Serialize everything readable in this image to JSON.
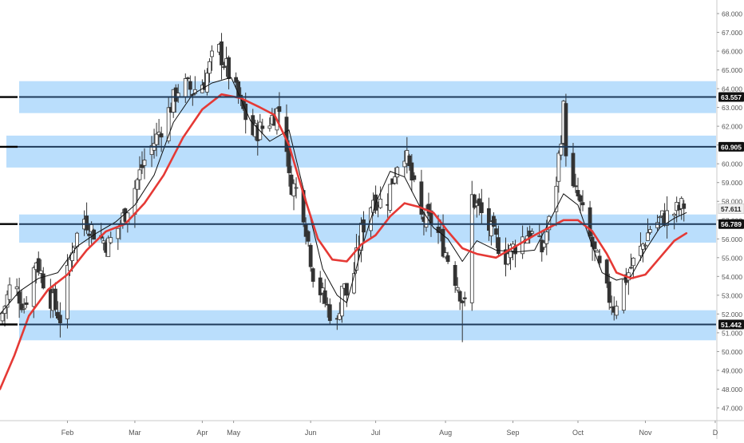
{
  "chart_data": {
    "type": "candlestick",
    "instrument_colors": {
      "zone_fill": "#b3dafc",
      "level_line": "#1f3b5a",
      "slow_ma": "#e53935",
      "fast_ma": "#111111",
      "candle_up_body": "#ffffff",
      "candle_down_body": "#333333",
      "wick": "#333333",
      "price_label_bg": "#111111",
      "current_price_label_bg": "#f0f0f0"
    },
    "y_axis": {
      "range": [
        46.3,
        68.4
      ],
      "ticks": [
        "47.000",
        "48.000",
        "49.000",
        "50.000",
        "51.000",
        "52.000",
        "53.000",
        "54.000",
        "55.000",
        "56.000",
        "57.000",
        "58.000",
        "59.000",
        "60.000",
        "61.000",
        "62.000",
        "63.000",
        "64.000",
        "65.000",
        "66.000",
        "67.000",
        "68.000"
      ],
      "tick_values": [
        47,
        48,
        49,
        50,
        51,
        52,
        53,
        54,
        55,
        56,
        57,
        58,
        59,
        60,
        61,
        62,
        63,
        64,
        65,
        66,
        67,
        68
      ]
    },
    "x_axis": {
      "labels": [
        "Feb",
        "Mar",
        "Apr",
        "May",
        "Jun",
        "Jul",
        "Aug",
        "Sep",
        "Oct",
        "Nov",
        "D"
      ],
      "label_days": [
        28,
        56,
        84,
        97,
        129,
        156,
        185,
        213,
        240,
        268,
        297
      ],
      "day_range": [
        0,
        300
      ]
    },
    "support_resistance_zones": [
      {
        "low": 62.7,
        "high": 64.4,
        "level": 63.557,
        "label": "63.557"
      },
      {
        "low": 59.8,
        "high": 61.5,
        "level": 60.905,
        "label": "60.905"
      },
      {
        "low": 55.8,
        "high": 57.3,
        "level": 56.789,
        "label": "56.789"
      },
      {
        "low": 50.6,
        "high": 52.2,
        "level": 51.442,
        "label": "51.442"
      }
    ],
    "current_price": {
      "value": 57.611,
      "label": "57.611"
    },
    "candles_close_path": [
      [
        0,
        51.6
      ],
      [
        5,
        53.8
      ],
      [
        10,
        52.4
      ],
      [
        15,
        54.9
      ],
      [
        20,
        53.1
      ],
      [
        25,
        51.8
      ],
      [
        30,
        55.6
      ],
      [
        35,
        57.1
      ],
      [
        40,
        56.2
      ],
      [
        45,
        55.7
      ],
      [
        50,
        56.8
      ],
      [
        55,
        58.4
      ],
      [
        60,
        60.2
      ],
      [
        65,
        61.4
      ],
      [
        70,
        62.8
      ],
      [
        75,
        64.3
      ],
      [
        80,
        63.9
      ],
      [
        85,
        64.4
      ],
      [
        90,
        66.3
      ],
      [
        95,
        64.8
      ],
      [
        100,
        63.1
      ],
      [
        105,
        61.6
      ],
      [
        110,
        62.0
      ],
      [
        115,
        62.8
      ],
      [
        118,
        63.0
      ],
      [
        120,
        59.1
      ],
      [
        125,
        58.3
      ],
      [
        130,
        54.2
      ],
      [
        135,
        52.6
      ],
      [
        140,
        51.4
      ],
      [
        142,
        53.6
      ],
      [
        145,
        52.8
      ],
      [
        150,
        56.4
      ],
      [
        155,
        58.2
      ],
      [
        160,
        57.8
      ],
      [
        165,
        60.1
      ],
      [
        168,
        60.7
      ],
      [
        172,
        58.6
      ],
      [
        175,
        57.1
      ],
      [
        180,
        56.9
      ],
      [
        185,
        55.3
      ],
      [
        190,
        53.6
      ],
      [
        193,
        52.4
      ],
      [
        196,
        58.2
      ],
      [
        200,
        57.3
      ],
      [
        205,
        56.1
      ],
      [
        210,
        55.1
      ],
      [
        215,
        55.8
      ],
      [
        220,
        56.4
      ],
      [
        225,
        55.4
      ],
      [
        230,
        57.8
      ],
      [
        234,
        62.9
      ],
      [
        236,
        58.8
      ],
      [
        240,
        58.2
      ],
      [
        244,
        56.4
      ],
      [
        248,
        54.8
      ],
      [
        252,
        53.1
      ],
      [
        255,
        52.4
      ],
      [
        258,
        53.4
      ],
      [
        262,
        54.5
      ],
      [
        266,
        55.4
      ],
      [
        270,
        56.6
      ],
      [
        275,
        57.1
      ],
      [
        280,
        57.4
      ],
      [
        285,
        57.9
      ]
    ],
    "series": [
      {
        "name": "",
        "kind": "fast_ma",
        "points": [
          [
            0,
            52.0
          ],
          [
            8,
            53.2
          ],
          [
            16,
            53.9
          ],
          [
            24,
            54.2
          ],
          [
            32,
            55.6
          ],
          [
            40,
            56.3
          ],
          [
            48,
            56.9
          ],
          [
            56,
            57.8
          ],
          [
            64,
            59.4
          ],
          [
            72,
            62.2
          ],
          [
            80,
            63.7
          ],
          [
            88,
            64.3
          ],
          [
            96,
            64.6
          ],
          [
            104,
            62.3
          ],
          [
            112,
            61.2
          ],
          [
            120,
            61.8
          ],
          [
            128,
            57.6
          ],
          [
            134,
            54.4
          ],
          [
            140,
            53.0
          ],
          [
            144,
            52.6
          ],
          [
            150,
            55.4
          ],
          [
            156,
            57.9
          ],
          [
            162,
            59.6
          ],
          [
            168,
            59.3
          ],
          [
            174,
            57.8
          ],
          [
            180,
            56.6
          ],
          [
            186,
            56.0
          ],
          [
            192,
            54.8
          ],
          [
            198,
            55.9
          ],
          [
            206,
            55.4
          ],
          [
            214,
            55.3
          ],
          [
            222,
            55.4
          ],
          [
            228,
            56.9
          ],
          [
            234,
            58.4
          ],
          [
            240,
            57.8
          ],
          [
            246,
            55.6
          ],
          [
            250,
            54.2
          ],
          [
            256,
            53.8
          ],
          [
            262,
            54.0
          ],
          [
            268,
            55.4
          ],
          [
            274,
            56.6
          ],
          [
            280,
            57.1
          ],
          [
            285,
            57.4
          ]
        ]
      },
      {
        "name": "",
        "kind": "slow_ma",
        "points": [
          [
            0,
            48.0
          ],
          [
            6,
            49.8
          ],
          [
            12,
            51.9
          ],
          [
            20,
            53.3
          ],
          [
            28,
            54.1
          ],
          [
            36,
            55.4
          ],
          [
            44,
            56.4
          ],
          [
            52,
            56.8
          ],
          [
            60,
            57.9
          ],
          [
            68,
            59.4
          ],
          [
            76,
            61.4
          ],
          [
            84,
            62.9
          ],
          [
            92,
            63.7
          ],
          [
            100,
            63.5
          ],
          [
            108,
            63.0
          ],
          [
            114,
            62.6
          ],
          [
            120,
            61.0
          ],
          [
            126,
            58.4
          ],
          [
            132,
            56.0
          ],
          [
            138,
            54.9
          ],
          [
            144,
            54.8
          ],
          [
            150,
            55.7
          ],
          [
            156,
            56.2
          ],
          [
            162,
            57.2
          ],
          [
            168,
            57.9
          ],
          [
            174,
            57.7
          ],
          [
            180,
            57.4
          ],
          [
            186,
            56.4
          ],
          [
            192,
            55.5
          ],
          [
            198,
            55.2
          ],
          [
            206,
            55.0
          ],
          [
            214,
            55.6
          ],
          [
            222,
            56.2
          ],
          [
            228,
            56.6
          ],
          [
            234,
            57.0
          ],
          [
            240,
            57.0
          ],
          [
            246,
            56.4
          ],
          [
            252,
            55.2
          ],
          [
            256,
            54.2
          ],
          [
            262,
            53.9
          ],
          [
            268,
            54.1
          ],
          [
            274,
            55.0
          ],
          [
            280,
            55.9
          ],
          [
            285,
            56.3
          ]
        ]
      }
    ]
  }
}
